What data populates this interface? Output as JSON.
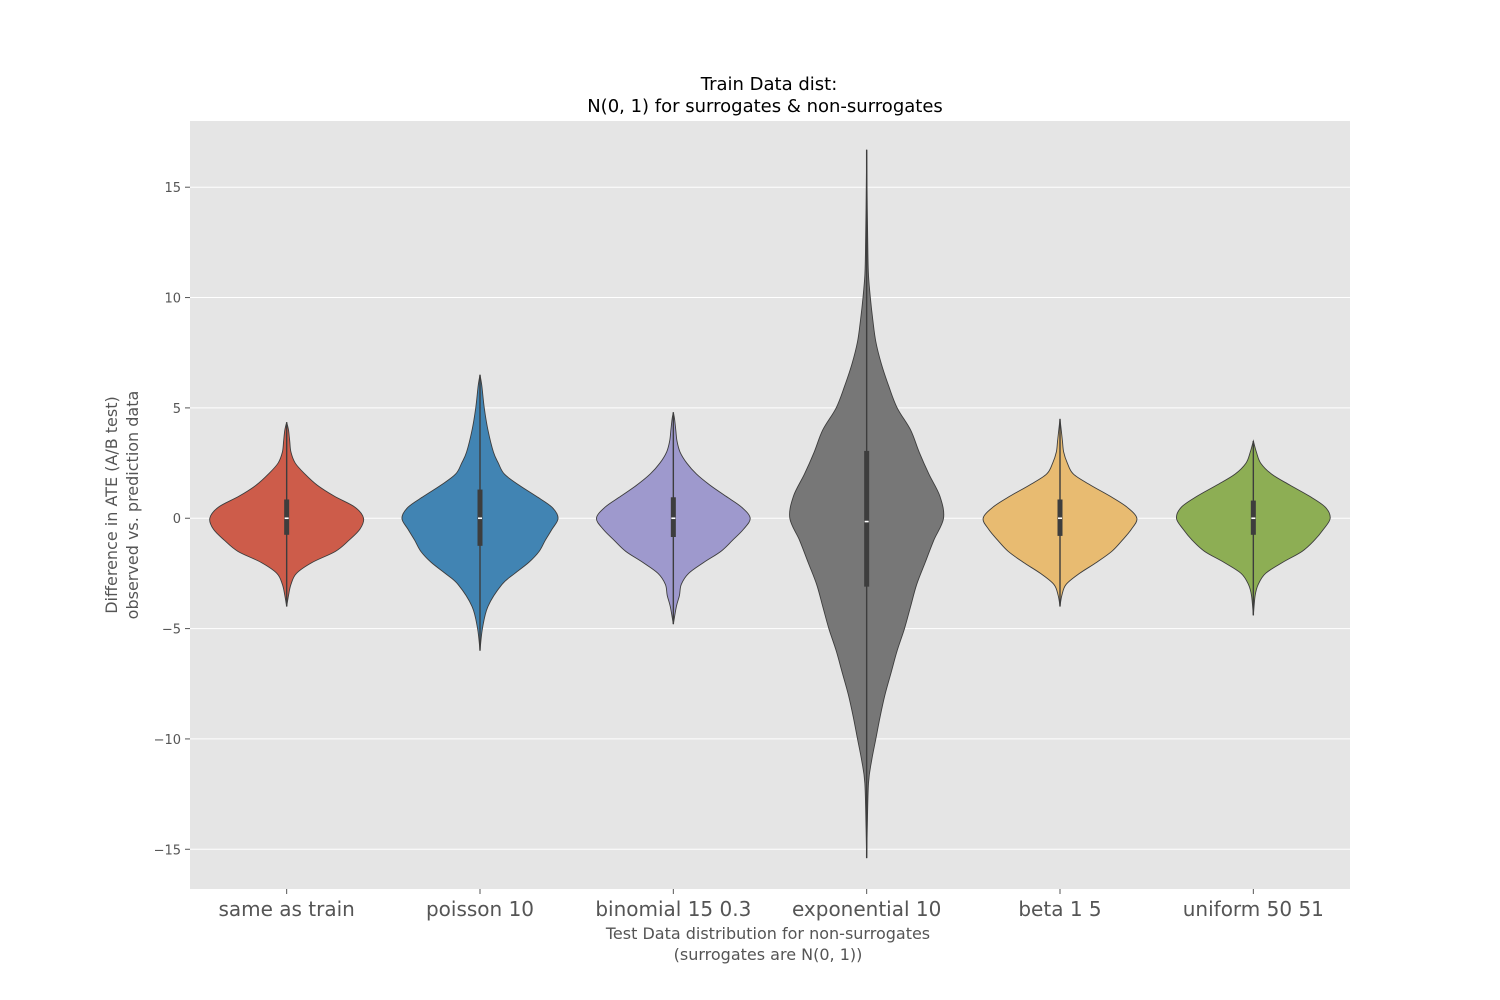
{
  "chart_data": {
    "type": "violin",
    "title": [
      "Train Data dist:",
      "N(0, 1) for surrogates & non-surrogates"
    ],
    "xlabel": [
      "Test Data distribution for non-surrogates",
      "(surrogates are N(0, 1))"
    ],
    "ylabel": [
      "Difference in ATE (A/B test)",
      "observed vs. prediction data"
    ],
    "ylim": [
      -16.8,
      18.0
    ],
    "yticks": [
      15,
      10,
      5,
      0,
      -5,
      -10,
      -15
    ],
    "ytick_labels": [
      "15",
      "10",
      "5",
      "0",
      "−5",
      "−10",
      "−15"
    ],
    "grid": true,
    "categories": [
      "same as train",
      "poisson 10",
      "binomial 15 0.3",
      "exponential 10",
      "beta 1 5",
      "uniform 50 51"
    ],
    "series": [
      {
        "color": "#cd5c4a",
        "min": -4.0,
        "max": 4.35,
        "q1": -0.75,
        "median": 0.0,
        "q3": 0.85,
        "profile": [
          [
            -4.0,
            0
          ],
          [
            -3.5,
            0.03
          ],
          [
            -3.0,
            0.07
          ],
          [
            -2.5,
            0.16
          ],
          [
            -2.0,
            0.42
          ],
          [
            -1.5,
            0.8
          ],
          [
            -1.0,
            1.02
          ],
          [
            -0.5,
            1.2
          ],
          [
            0,
            1.26
          ],
          [
            0.5,
            1.12
          ],
          [
            1.0,
            0.78
          ],
          [
            1.5,
            0.5
          ],
          [
            2.0,
            0.3
          ],
          [
            2.5,
            0.14
          ],
          [
            3.0,
            0.07
          ],
          [
            3.5,
            0.05
          ],
          [
            4.0,
            0.03
          ],
          [
            4.35,
            0
          ]
        ]
      },
      {
        "color": "#4184b3",
        "min": -6.0,
        "max": 6.5,
        "q1": -1.25,
        "median": 0.0,
        "q3": 1.3,
        "profile": [
          [
            -6.0,
            0
          ],
          [
            -5.0,
            0.04
          ],
          [
            -4.0,
            0.13
          ],
          [
            -3.0,
            0.36
          ],
          [
            -2.5,
            0.57
          ],
          [
            -2.0,
            0.8
          ],
          [
            -1.5,
            0.97
          ],
          [
            -1.0,
            1.07
          ],
          [
            -0.5,
            1.18
          ],
          [
            0,
            1.28
          ],
          [
            0.5,
            1.18
          ],
          [
            1.0,
            0.92
          ],
          [
            1.5,
            0.64
          ],
          [
            2.0,
            0.4
          ],
          [
            2.5,
            0.3
          ],
          [
            3.0,
            0.22
          ],
          [
            4.0,
            0.13
          ],
          [
            5.0,
            0.07
          ],
          [
            6.0,
            0.03
          ],
          [
            6.5,
            0
          ]
        ]
      },
      {
        "color": "#9e99cd",
        "min": -4.8,
        "max": 4.8,
        "q1": -0.85,
        "median": 0.0,
        "q3": 0.95,
        "profile": [
          [
            -4.8,
            0
          ],
          [
            -4.0,
            0.05
          ],
          [
            -3.5,
            0.1
          ],
          [
            -3.0,
            0.13
          ],
          [
            -2.5,
            0.25
          ],
          [
            -2.0,
            0.5
          ],
          [
            -1.5,
            0.78
          ],
          [
            -1.0,
            0.97
          ],
          [
            -0.5,
            1.15
          ],
          [
            0,
            1.26
          ],
          [
            0.5,
            1.12
          ],
          [
            1.0,
            0.86
          ],
          [
            1.5,
            0.6
          ],
          [
            2.0,
            0.38
          ],
          [
            2.5,
            0.22
          ],
          [
            3.0,
            0.11
          ],
          [
            3.5,
            0.06
          ],
          [
            4.0,
            0.04
          ],
          [
            4.5,
            0.02
          ],
          [
            4.8,
            0
          ]
        ]
      },
      {
        "color": "#777777",
        "min": -15.4,
        "max": 16.7,
        "q1": -3.1,
        "median": -0.15,
        "q3": 3.05,
        "profile": [
          [
            -15.4,
            0
          ],
          [
            -14.0,
            0.01
          ],
          [
            -12.0,
            0.03
          ],
          [
            -11.0,
            0.08
          ],
          [
            -10.0,
            0.15
          ],
          [
            -9.0,
            0.22
          ],
          [
            -8.0,
            0.3
          ],
          [
            -7.0,
            0.4
          ],
          [
            -6.0,
            0.5
          ],
          [
            -5.0,
            0.62
          ],
          [
            -4.0,
            0.72
          ],
          [
            -3.0,
            0.82
          ],
          [
            -2.0,
            0.96
          ],
          [
            -1.0,
            1.1
          ],
          [
            0,
            1.26
          ],
          [
            1.0,
            1.2
          ],
          [
            2.0,
            1.02
          ],
          [
            3.0,
            0.86
          ],
          [
            4.0,
            0.72
          ],
          [
            5.0,
            0.5
          ],
          [
            6.0,
            0.36
          ],
          [
            7.0,
            0.24
          ],
          [
            8.0,
            0.15
          ],
          [
            9.0,
            0.1
          ],
          [
            10.0,
            0.06
          ],
          [
            11.0,
            0.03
          ],
          [
            12.0,
            0.02
          ],
          [
            14.0,
            0.01
          ],
          [
            16.7,
            0
          ]
        ]
      },
      {
        "color": "#e8bb71",
        "min": -4.0,
        "max": 4.5,
        "q1": -0.8,
        "median": 0.0,
        "q3": 0.85,
        "profile": [
          [
            -4.0,
            0
          ],
          [
            -3.5,
            0.03
          ],
          [
            -3.0,
            0.1
          ],
          [
            -2.5,
            0.32
          ],
          [
            -2.0,
            0.6
          ],
          [
            -1.5,
            0.85
          ],
          [
            -1.0,
            1.02
          ],
          [
            -0.5,
            1.17
          ],
          [
            0,
            1.26
          ],
          [
            0.5,
            1.1
          ],
          [
            1.0,
            0.82
          ],
          [
            1.5,
            0.5
          ],
          [
            2.0,
            0.22
          ],
          [
            2.5,
            0.12
          ],
          [
            3.0,
            0.06
          ],
          [
            3.5,
            0.04
          ],
          [
            4.0,
            0.02
          ],
          [
            4.5,
            0
          ]
        ]
      },
      {
        "color": "#8dae54",
        "min": -4.4,
        "max": 3.5,
        "q1": -0.75,
        "median": 0.0,
        "q3": 0.8,
        "profile": [
          [
            -4.4,
            0
          ],
          [
            -3.5,
            0.03
          ],
          [
            -3.0,
            0.08
          ],
          [
            -2.5,
            0.2
          ],
          [
            -2.0,
            0.48
          ],
          [
            -1.5,
            0.8
          ],
          [
            -1.0,
            1.0
          ],
          [
            -0.5,
            1.15
          ],
          [
            0,
            1.26
          ],
          [
            0.5,
            1.18
          ],
          [
            1.0,
            0.92
          ],
          [
            1.5,
            0.6
          ],
          [
            2.0,
            0.3
          ],
          [
            2.5,
            0.12
          ],
          [
            3.0,
            0.05
          ],
          [
            3.5,
            0
          ]
        ]
      }
    ]
  }
}
